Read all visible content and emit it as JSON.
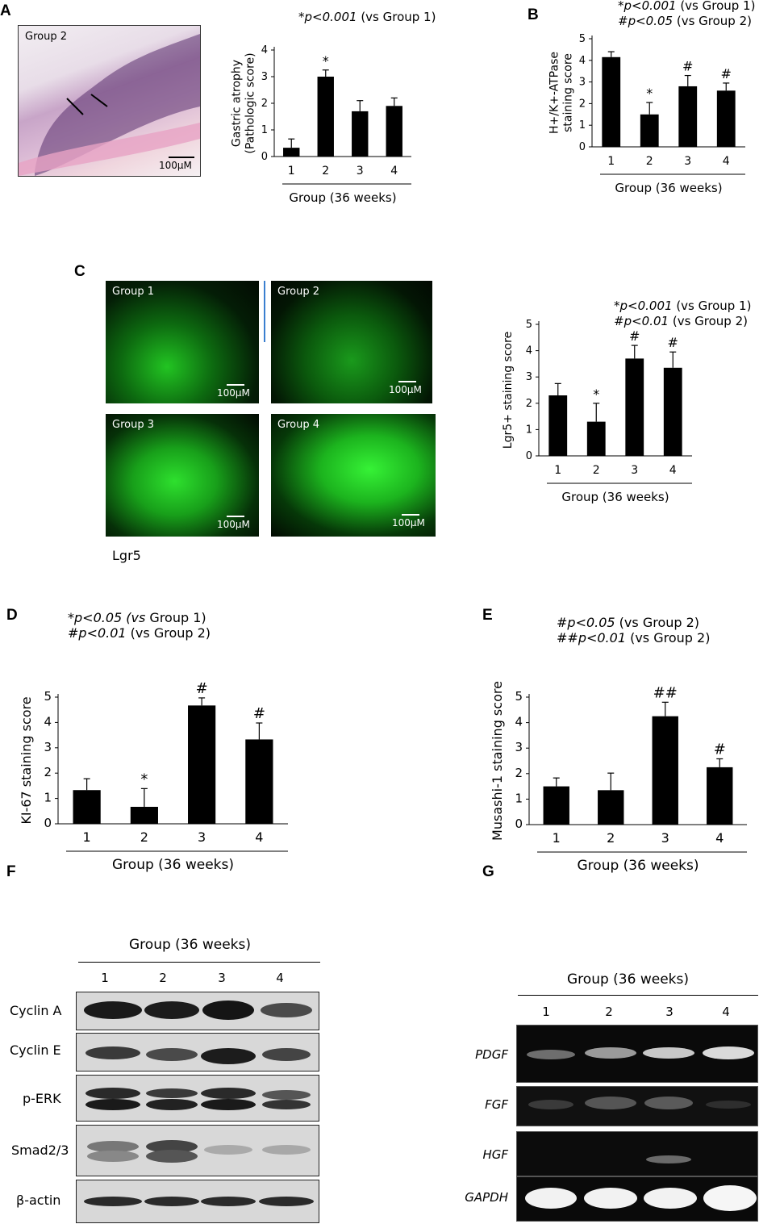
{
  "panels": {
    "A": {
      "label": "A",
      "image_tag": "Group 2",
      "scale_label": "100μM",
      "note": [
        {
          "sym": "*",
          "p": "p<0.001",
          "rest": " (vs Group 1)"
        }
      ]
    },
    "B": {
      "label": "B",
      "note": [
        {
          "sym": "*",
          "p": "p<0.001",
          "rest": " (vs Group 1)"
        },
        {
          "sym": "#",
          "p": "p<0.05",
          "rest": " (vs Group 2)"
        }
      ]
    },
    "C": {
      "label": "C",
      "images": [
        {
          "tag": "Group 1",
          "scale": "100μM"
        },
        {
          "tag": "Group 2",
          "scale": "100μM"
        },
        {
          "tag": "Group 3",
          "scale": "100μM"
        },
        {
          "tag": "Group 4",
          "scale": "100μM"
        }
      ],
      "marker": "Lgr5",
      "note": [
        {
          "sym": "*",
          "p": "p<0.001",
          "rest": " (vs Group 1)"
        },
        {
          "sym": "#",
          "p": "p<0.01",
          "rest": " (vs Group 2)"
        }
      ]
    },
    "D": {
      "label": "D",
      "note": [
        {
          "sym": "*",
          "p": "p<0.05 (vs",
          "rest": " Group 1)"
        },
        {
          "sym": "#",
          "p": "p<0.01",
          "rest": " (vs Group 2)"
        }
      ]
    },
    "E": {
      "label": "E",
      "note": [
        {
          "sym": "#",
          "p": "p<0.05",
          "rest": " (vs Group 2)"
        },
        {
          "sym": "##",
          "p": "p<0.01",
          "rest": " (vs Group 2)"
        }
      ]
    },
    "F": {
      "label": "F",
      "title": "Group (36 weeks)",
      "lanes": [
        "1",
        "2",
        "3",
        "4"
      ],
      "rows": [
        "Cyclin A",
        "Cyclin E",
        "p-ERK",
        "Smad2/3",
        "β-actin"
      ]
    },
    "G": {
      "label": "G",
      "title": "Group (36 weeks)",
      "lanes": [
        "1",
        "2",
        "3",
        "4"
      ],
      "rows": [
        "PDGF",
        "FGF",
        "HGF",
        "GAPDH"
      ]
    }
  },
  "chart_data": [
    {
      "id": "A",
      "type": "bar",
      "categories": [
        "1",
        "2",
        "3",
        "4"
      ],
      "values": [
        0.33,
        3.0,
        1.7,
        1.9
      ],
      "errors": [
        0.33,
        0.25,
        0.4,
        0.3
      ],
      "marks": [
        "",
        "*",
        "",
        ""
      ],
      "ylim": [
        0,
        4
      ],
      "yticks": [
        0,
        1,
        2,
        3,
        4
      ],
      "ylabel": "Gastric atrophy (Pathologic score)",
      "xlabel": "Group (36 weeks)"
    },
    {
      "id": "B",
      "type": "bar",
      "categories": [
        "1",
        "2",
        "3",
        "4"
      ],
      "values": [
        4.15,
        1.5,
        2.8,
        2.6
      ],
      "errors": [
        0.25,
        0.55,
        0.5,
        0.35
      ],
      "marks": [
        "",
        "*",
        "#",
        "#"
      ],
      "ylim": [
        0,
        5
      ],
      "yticks": [
        0,
        1,
        2,
        3,
        4,
        5
      ],
      "ylabel": "H+/K+-ATPase staining score",
      "xlabel": "Group (36 weeks)"
    },
    {
      "id": "C",
      "type": "bar",
      "categories": [
        "1",
        "2",
        "3",
        "4"
      ],
      "values": [
        2.3,
        1.3,
        3.7,
        3.35
      ],
      "errors": [
        0.45,
        0.7,
        0.5,
        0.6
      ],
      "marks": [
        "",
        "*",
        "#",
        "#"
      ],
      "ylim": [
        0,
        5
      ],
      "yticks": [
        0,
        1,
        2,
        3,
        4,
        5
      ],
      "ylabel": "Lgr5+ staining score",
      "xlabel": "Group (36 weeks)"
    },
    {
      "id": "D",
      "type": "bar",
      "categories": [
        "1",
        "2",
        "3",
        "4"
      ],
      "values": [
        1.33,
        0.67,
        4.67,
        3.33
      ],
      "errors": [
        0.45,
        0.72,
        0.3,
        0.65
      ],
      "marks": [
        "",
        "*",
        "#",
        "#"
      ],
      "ylim": [
        0,
        5
      ],
      "yticks": [
        0,
        1,
        2,
        3,
        4,
        5
      ],
      "ylabel": "KI-67 staining score",
      "xlabel": "Group (36 weeks)"
    },
    {
      "id": "E",
      "type": "bar",
      "categories": [
        "1",
        "2",
        "3",
        "4"
      ],
      "values": [
        1.5,
        1.35,
        4.25,
        2.25
      ],
      "errors": [
        0.33,
        0.67,
        0.55,
        0.33
      ],
      "marks": [
        "",
        "",
        "##",
        "#"
      ],
      "ylim": [
        0,
        5
      ],
      "yticks": [
        0,
        1,
        2,
        3,
        4,
        5
      ],
      "ylabel": "Musashi-1 staining score",
      "xlabel": "Group (36 weeks)"
    }
  ]
}
